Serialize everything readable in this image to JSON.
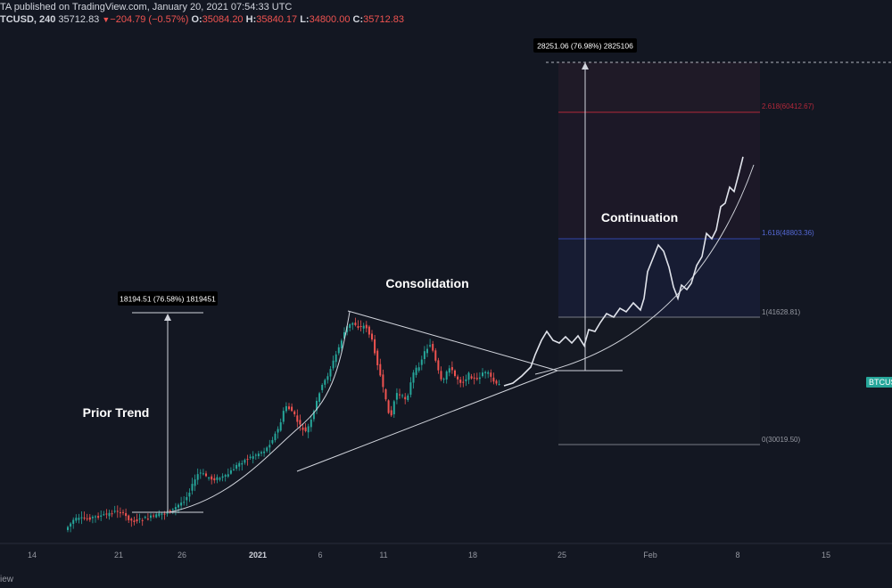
{
  "header": {
    "line1": "TA published on TradingView.com, January 20, 2021 07:54:33 UTC",
    "symbol": "TCUSD, 240",
    "last": "35712.83",
    "change": "−204.79 (−0.57%)",
    "o_label": "O:",
    "o_value": "35084.20",
    "h_label": "H:",
    "h_value": "35840.17",
    "l_label": "L:",
    "l_value": "34800.00",
    "c_label": "C:",
    "c_value": "35712.83"
  },
  "footer": {
    "text": "iew"
  },
  "symbol_badge": "BTCUS",
  "colors": {
    "background": "#131722",
    "up": "#26a69a",
    "down": "#ef5350",
    "drawing": "#d1d4dc",
    "fib_2618": "#b2283a",
    "fib_1618": "#3346a8",
    "fib_1": "#787b86",
    "fib_0": "#787b86"
  },
  "chart_data": {
    "type": "candlestick",
    "x_ticks": [
      "14",
      "21",
      "26",
      "2021",
      "6",
      "11",
      "18",
      "25",
      "Feb",
      "8",
      "15"
    ],
    "x_tick_dates": [
      "2020-12-14",
      "2020-12-21",
      "2020-12-26",
      "2021-01-01",
      "2021-01-06",
      "2021-01-11",
      "2021-01-18",
      "2021-01-25",
      "2021-02-01",
      "2021-02-08",
      "2021-02-15"
    ],
    "measures": [
      {
        "label": "18194.51 (76.58%) 1819451"
      },
      {
        "label": "28251.06 (76.98%) 2825106"
      }
    ],
    "fib_levels": [
      {
        "ratio": "2.618",
        "price": 60412.67,
        "label": "2.618(60412.67)"
      },
      {
        "ratio": "1.618",
        "price": 48803.36,
        "label": "1.618(48803.36)"
      },
      {
        "ratio": "1",
        "price": 41628.81,
        "label": "1(41628.81)"
      },
      {
        "ratio": "0",
        "price": 30019.5,
        "label": "0(30019.50)"
      }
    ],
    "annotations": [
      "Prior Trend",
      "Consolidation",
      "Continuation"
    ]
  }
}
